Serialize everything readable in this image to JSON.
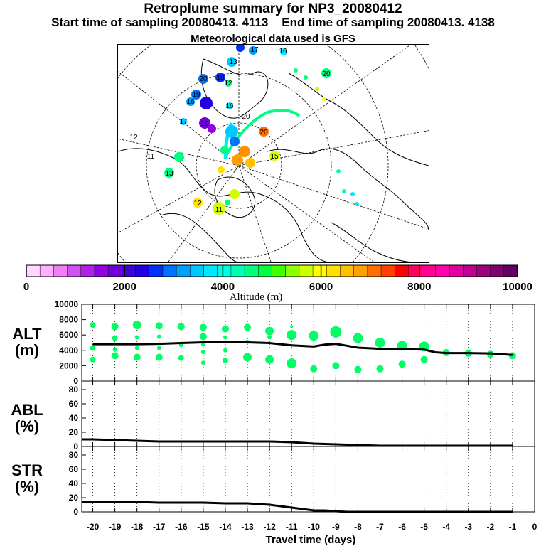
{
  "header": {
    "title": "Retroplume summary for NP3_20080412",
    "start_label": "Start time of sampling 20080413.  4113",
    "end_label": "End time of sampling 20080413.  4138",
    "met_label": "Meteorological data used is GFS"
  },
  "colors": {
    "green_marker": "#00ff66",
    "line": "#000000",
    "colorbar": [
      "#ffd8ff",
      "#ffb0ff",
      "#f080f8",
      "#d050f0",
      "#b020e8",
      "#9000e0",
      "#7000d8",
      "#4000d8",
      "#2000e0",
      "#0030ff",
      "#0070ff",
      "#00a0ff",
      "#00c8ff",
      "#00e8ff",
      "#00ffe0",
      "#00ffb0",
      "#00ff80",
      "#00ff40",
      "#40ff00",
      "#90ff00",
      "#d0ff00",
      "#ffff00",
      "#ffe000",
      "#ffc000",
      "#ffa000",
      "#ff7000",
      "#ff4000",
      "#ff0000",
      "#ff0060",
      "#ff0090",
      "#ff00b0",
      "#e000a0",
      "#c00090",
      "#a00080",
      "#800070",
      "#600060"
    ]
  },
  "colorbar": {
    "tick_labels": [
      "0",
      "2000",
      "4000",
      "6000",
      "8000",
      "10000"
    ],
    "title": "Altitude (m)"
  },
  "map": {
    "labels": [
      {
        "t": "17",
        "c": "#00a0ff"
      },
      {
        "t": "16",
        "c": "#00e8ff"
      },
      {
        "t": "13",
        "c": "#00c8ff"
      },
      {
        "t": "20",
        "c": "#00ff80"
      },
      {
        "t": "20",
        "c": "#0070ff"
      },
      {
        "t": "18",
        "c": "#0030ff"
      },
      {
        "t": "12",
        "c": "#00ff80"
      },
      {
        "t": "19",
        "c": "#0070ff"
      },
      {
        "t": "16",
        "c": "#00a0ff"
      },
      {
        "t": "19",
        "c": "#7000d8"
      },
      {
        "t": "17",
        "c": "#00c8ff"
      },
      {
        "t": "12",
        "c": "#ffffff"
      },
      {
        "t": "11",
        "c": "#ffffff"
      },
      {
        "t": "13",
        "c": "#00ff80"
      },
      {
        "t": "20",
        "c": "#ff7000"
      },
      {
        "t": "15",
        "c": "#ffff00"
      },
      {
        "t": "12",
        "c": "#ffd000"
      },
      {
        "t": "11",
        "c": "#d0ff00"
      },
      {
        "t": "20",
        "c": "#00ffb0"
      },
      {
        "t": "16",
        "c": "#00ffe0"
      }
    ]
  },
  "chart_data": [
    {
      "type": "scatter",
      "panel": "ALT",
      "ylabel": "ALT (m)",
      "ylim": [
        0,
        10000
      ],
      "yticks": [
        "0",
        "2000",
        "4000",
        "6000",
        "8000",
        "10000"
      ],
      "xlim": [
        -20.5,
        0
      ],
      "mean_line": {
        "x": [
          -20,
          -19,
          -18,
          -17,
          -16,
          -15,
          -14,
          -13,
          -12,
          -11,
          -10,
          -9.5,
          -9,
          -8.5,
          -8,
          -7,
          -6,
          -5,
          -4.5,
          -4,
          -3,
          -2,
          -1
        ],
        "y": [
          4800,
          4800,
          4800,
          4850,
          4950,
          5050,
          5100,
          5050,
          4950,
          4650,
          4500,
          4750,
          4850,
          4600,
          4350,
          4200,
          4150,
          4100,
          3750,
          3650,
          3650,
          3600,
          3400
        ]
      },
      "points": [
        {
          "x": -20,
          "y": 7300,
          "s": 4
        },
        {
          "x": -20,
          "y": 4300,
          "s": 4
        },
        {
          "x": -20,
          "y": 2800,
          "s": 4
        },
        {
          "x": -19,
          "y": 7100,
          "s": 5
        },
        {
          "x": -19,
          "y": 5600,
          "s": 4
        },
        {
          "x": -19,
          "y": 4100,
          "s": 3
        },
        {
          "x": -19,
          "y": 3300,
          "s": 5
        },
        {
          "x": -18,
          "y": 7300,
          "s": 6
        },
        {
          "x": -18,
          "y": 5700,
          "s": 3
        },
        {
          "x": -18,
          "y": 4300,
          "s": 3
        },
        {
          "x": -18,
          "y": 3100,
          "s": 5
        },
        {
          "x": -17,
          "y": 7200,
          "s": 5
        },
        {
          "x": -17,
          "y": 5800,
          "s": 3
        },
        {
          "x": -17,
          "y": 4300,
          "s": 3
        },
        {
          "x": -17,
          "y": 3100,
          "s": 5
        },
        {
          "x": -16,
          "y": 7100,
          "s": 5
        },
        {
          "x": -16,
          "y": 4700,
          "s": 3
        },
        {
          "x": -16,
          "y": 3000,
          "s": 4
        },
        {
          "x": -15,
          "y": 7000,
          "s": 5
        },
        {
          "x": -15,
          "y": 5800,
          "s": 5
        },
        {
          "x": -15,
          "y": 4800,
          "s": 3
        },
        {
          "x": -15,
          "y": 3800,
          "s": 3
        },
        {
          "x": -15,
          "y": 2400,
          "s": 3
        },
        {
          "x": -14,
          "y": 6800,
          "s": 5
        },
        {
          "x": -14,
          "y": 5700,
          "s": 3
        },
        {
          "x": -14,
          "y": 4000,
          "s": 3
        },
        {
          "x": -14,
          "y": 2700,
          "s": 4
        },
        {
          "x": -13,
          "y": 7000,
          "s": 5
        },
        {
          "x": -13,
          "y": 5100,
          "s": 3
        },
        {
          "x": -13,
          "y": 3100,
          "s": 6
        },
        {
          "x": -12,
          "y": 6500,
          "s": 6
        },
        {
          "x": -12,
          "y": 5700,
          "s": 3
        },
        {
          "x": -12,
          "y": 2800,
          "s": 6
        },
        {
          "x": -11,
          "y": 7100,
          "s": 2
        },
        {
          "x": -11,
          "y": 6000,
          "s": 7
        },
        {
          "x": -11,
          "y": 2300,
          "s": 7
        },
        {
          "x": -10,
          "y": 5900,
          "s": 7
        },
        {
          "x": -10,
          "y": 1600,
          "s": 5
        },
        {
          "x": -9,
          "y": 6400,
          "s": 8
        },
        {
          "x": -9,
          "y": 2000,
          "s": 5
        },
        {
          "x": -8,
          "y": 5600,
          "s": 7
        },
        {
          "x": -8,
          "y": 1500,
          "s": 5
        },
        {
          "x": -7,
          "y": 5000,
          "s": 7
        },
        {
          "x": -7,
          "y": 1600,
          "s": 5
        },
        {
          "x": -6,
          "y": 4600,
          "s": 7
        },
        {
          "x": -6,
          "y": 2200,
          "s": 5
        },
        {
          "x": -5,
          "y": 4500,
          "s": 7
        },
        {
          "x": -5,
          "y": 2800,
          "s": 5
        },
        {
          "x": -4,
          "y": 3700,
          "s": 5
        },
        {
          "x": -3,
          "y": 3600,
          "s": 5
        },
        {
          "x": -2,
          "y": 3500,
          "s": 5
        },
        {
          "x": -1,
          "y": 3300,
          "s": 5
        }
      ]
    },
    {
      "type": "line",
      "panel": "ABL",
      "ylabel": "ABL (%)",
      "ylim": [
        0,
        90
      ],
      "yticks": [
        "0",
        "20",
        "40",
        "60",
        "80"
      ],
      "xlim": [
        -20.5,
        0
      ],
      "x": [
        -20.5,
        -20,
        -19,
        -18,
        -17,
        -16,
        -15,
        -14,
        -13,
        -12,
        -11,
        -10,
        -9,
        -8,
        -7,
        -6,
        -5,
        -4,
        -3,
        -2,
        -1
      ],
      "y": [
        10,
        10,
        9,
        8,
        7,
        7,
        7,
        7,
        7,
        7,
        6,
        4,
        3,
        2,
        1,
        1,
        1,
        1,
        1,
        1,
        1
      ]
    },
    {
      "type": "line",
      "panel": "STR",
      "ylabel": "STR (%)",
      "ylim": [
        0,
        90
      ],
      "yticks": [
        "0",
        "20",
        "40",
        "60",
        "80"
      ],
      "xlim": [
        -20.5,
        0
      ],
      "x": [
        -20.5,
        -20,
        -19,
        -18,
        -17,
        -16,
        -15,
        -14,
        -13,
        -12,
        -11,
        -10,
        -9.5,
        -9,
        -8.5,
        -8,
        -7,
        -6,
        -5,
        -4,
        -3,
        -2,
        -1
      ],
      "y": [
        14,
        14,
        14,
        14,
        13,
        13,
        13,
        12,
        12,
        10,
        6,
        2,
        2,
        1,
        0,
        0,
        0,
        0,
        0,
        0,
        0,
        0,
        0
      ]
    }
  ],
  "xaxis": {
    "tick_labels": [
      "-20",
      "-19",
      "-18",
      "-17",
      "-16",
      "-15",
      "-14",
      "-13",
      "-12",
      "-11",
      "-10",
      "-9",
      "-8",
      "-7",
      "-6",
      "-5",
      "-4",
      "-3",
      "-2",
      "-1",
      "0"
    ],
    "title": "Travel time (days)"
  },
  "panels": {
    "alt_label_1": "ALT",
    "alt_label_2": "(m)",
    "abl_label_1": "ABL",
    "abl_label_2": "(%)",
    "str_label_1": "STR",
    "str_label_2": "(%)"
  }
}
